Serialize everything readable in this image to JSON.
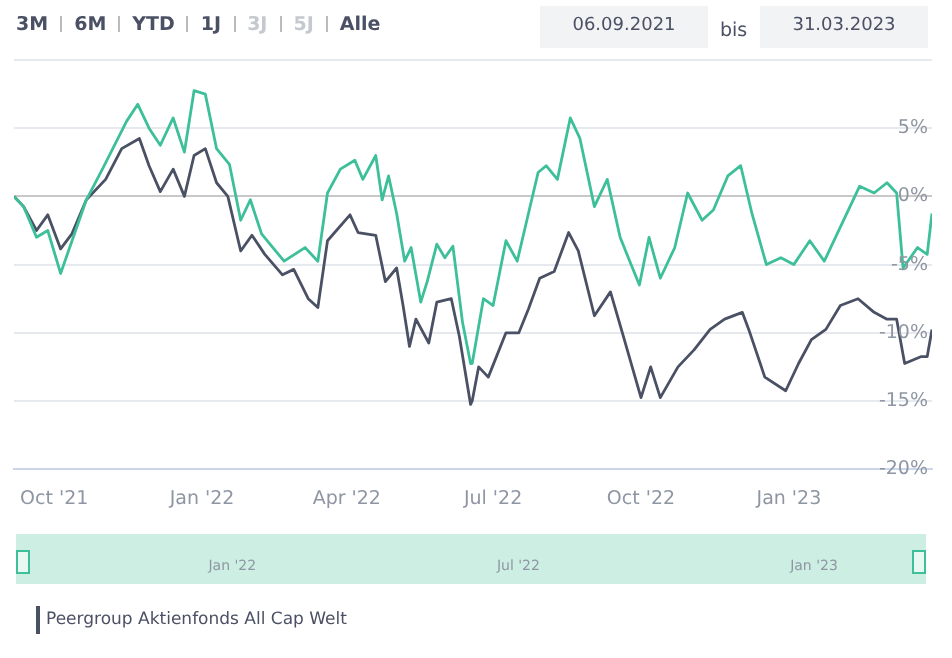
{
  "chart_data": {
    "type": "line",
    "x": [
      "2021-09-06",
      "2021-09-12",
      "2021-09-20",
      "2021-09-27",
      "2021-10-05",
      "2021-10-12",
      "2021-10-21",
      "2021-10-31",
      "2021-11-02",
      "2021-11-12",
      "2021-11-15",
      "2021-11-22",
      "2021-11-23",
      "2021-11-29",
      "2021-12-06",
      "2021-12-14",
      "2021-12-21",
      "2021-12-27",
      "2022-01-03",
      "2022-01-10",
      "2022-01-17",
      "2022-01-18",
      "2022-01-25",
      "2022-01-31",
      "2022-02-01",
      "2022-02-07",
      "2022-02-09",
      "2022-02-20",
      "2022-02-21",
      "2022-02-27",
      "2022-03-06",
      "2022-03-08",
      "2022-03-14",
      "2022-03-20",
      "2022-03-28",
      "2022-04-03",
      "2022-04-06",
      "2022-04-08",
      "2022-04-11",
      "2022-04-19",
      "2022-04-23",
      "2022-04-25",
      "2022-04-27",
      "2022-05-02",
      "2022-05-06",
      "2022-05-07",
      "2022-05-10",
      "2022-05-11",
      "2022-05-14",
      "2022-05-17",
      "2022-05-21",
      "2022-05-22",
      "2022-05-27",
      "2022-06-01",
      "2022-06-05",
      "2022-06-06",
      "2022-06-10",
      "2022-06-12",
      "2022-06-17",
      "2022-06-18",
      "2022-06-22",
      "2022-06-25",
      "2022-06-28",
      "2022-07-01",
      "2022-07-09",
      "2022-07-16",
      "2022-07-17",
      "2022-07-22",
      "2022-07-23",
      "2022-07-29",
      "2022-07-30",
      "2022-08-03",
      "2022-08-08",
      "2022-08-10",
      "2022-08-17",
      "2022-08-18",
      "2022-08-23",
      "2022-08-24",
      "2022-09-02",
      "2022-09-10",
      "2022-09-12",
      "2022-09-18",
      "2022-09-20",
      "2022-09-30",
      "2022-10-01",
      "2022-10-06",
      "2022-10-07",
      "2022-10-13",
      "2022-10-22",
      "2022-10-24",
      "2022-10-30",
      "2022-11-03",
      "2022-11-08",
      "2022-11-13",
      "2022-11-15",
      "2022-11-22",
      "2022-11-24",
      "2022-12-02",
      "2022-12-03",
      "2022-12-07",
      "2022-12-09",
      "2022-12-17",
      "2022-12-18",
      "2022-12-27",
      "2022-12-30",
      "2023-01-04",
      "2023-01-07",
      "2023-01-14",
      "2023-01-15",
      "2023-01-23",
      "2023-01-24",
      "2023-01-31",
      "2023-02-02",
      "2023-02-13",
      "2023-02-14",
      "2023-02-23",
      "2023-03-03",
      "2023-03-09",
      "2023-03-13",
      "2023-03-14",
      "2023-03-22",
      "2023-03-24",
      "2023-03-28",
      "2023-03-31"
    ],
    "series": [
      {
        "color": "#3dbf9a",
        "values": [
          0,
          -0.75,
          -3,
          -2.5,
          -5.65,
          null,
          -0.25,
          2,
          null,
          null,
          5.5,
          6.75,
          null,
          5,
          3.75,
          5.75,
          3.25,
          7.75,
          7.5,
          3.5,
          null,
          2.35,
          -1.75,
          -0.25,
          null,
          -2.75,
          null,
          null,
          -4.75,
          null,
          -3.75,
          null,
          -4.75,
          0.25,
          2,
          null,
          2.65,
          null,
          1.25,
          3,
          -0.25,
          null,
          1.5,
          -1.25,
          null,
          -4.75,
          null,
          -3.75,
          null,
          -7.75,
          -6.25,
          null,
          -3.5,
          -4.5,
          null,
          -3.65,
          null,
          -9.25,
          -12.25,
          -12.25,
          null,
          -7.5,
          null,
          -8,
          -3.25,
          -4.75,
          null,
          -1.75,
          null,
          1.75,
          null,
          2.25,
          null,
          1.25,
          null,
          5.75,
          null,
          4.25,
          -0.75,
          1.25,
          null,
          -3,
          null,
          -6.5,
          null,
          -3,
          null,
          -6,
          -3.75,
          null,
          0.25,
          null,
          -1.75,
          null,
          -1,
          null,
          1.5,
          2.25,
          null,
          null,
          -1.25,
          null,
          -5,
          -4.5,
          null,
          -5,
          null,
          -3.25,
          null,
          -4.75,
          null,
          -2.75,
          null,
          null,
          0.75,
          0.25,
          1,
          0.25,
          -5.25,
          null,
          -3.75,
          null,
          -4.25,
          -1.25
        ]
      },
      {
        "name": "Peergroup Aktienfonds All Cap Welt",
        "color": "#4b5164",
        "values": [
          0,
          -0.75,
          -2.5,
          -1.35,
          -3.85,
          -2.75,
          -0.25,
          null,
          1.25,
          3.5,
          null,
          null,
          4.25,
          2.25,
          0.35,
          2,
          0,
          3,
          3.5,
          1,
          0,
          null,
          -4,
          null,
          -2.85,
          null,
          -4.25,
          -5.75,
          null,
          -5.35,
          null,
          -7.5,
          -8.15,
          -3.25,
          null,
          -1.35,
          null,
          -2.65,
          null,
          -2.85,
          null,
          -6.25,
          null,
          -5.25,
          -8,
          null,
          -11,
          null,
          -9,
          null,
          null,
          -10.75,
          -7.75,
          null,
          -7.5,
          null,
          -10.25,
          null,
          -15.25,
          -15,
          -12.5,
          null,
          -13.25,
          null,
          -10,
          null,
          -10,
          null,
          -8.25,
          null,
          -6,
          null,
          -5.5,
          null,
          -2.65,
          null,
          -4,
          null,
          -8.75,
          null,
          -7,
          null,
          -10.25,
          null,
          -14.75,
          null,
          -12.5,
          -14.75,
          null,
          -12.5,
          null,
          -11.25,
          null,
          -9.75,
          null,
          -9,
          null,
          null,
          -8.5,
          -9.75,
          null,
          -13.25,
          null,
          null,
          -14.25,
          null,
          -12.25,
          null,
          -10.5,
          null,
          -9.75,
          null,
          -8,
          -7.5,
          null,
          -8.5,
          -9,
          -9,
          null,
          -12.25,
          null,
          -11.75,
          -11.75,
          -9.75
        ]
      }
    ],
    "xlim": [
      "2021-09-06",
      "2023-03-31"
    ],
    "xticks": [
      {
        "value": "2021-10-01",
        "label": "Oct '21"
      },
      {
        "value": "2022-01-01",
        "label": "Jan '22"
      },
      {
        "value": "2022-04-01",
        "label": "Apr '22"
      },
      {
        "value": "2022-07-01",
        "label": "Jul '22"
      },
      {
        "value": "2022-10-01",
        "label": "Oct '22"
      },
      {
        "value": "2023-01-01",
        "label": "Jan '23"
      }
    ],
    "ylim": [
      -20,
      10
    ],
    "yticks": [
      {
        "value": -20,
        "label": "-20%"
      },
      {
        "value": -15,
        "label": "-15%"
      },
      {
        "value": -10,
        "label": "-10%"
      },
      {
        "value": -5,
        "label": "-5%"
      },
      {
        "value": 0,
        "label": "0%"
      },
      {
        "value": 5,
        "label": "5%"
      },
      {
        "value": 10,
        "label": null
      }
    ],
    "grid": "y",
    "legend": "bottom left",
    "marker": "none",
    "line_style": "solid",
    "annotations": [
      "3M",
      "6M",
      "YTD",
      "1J",
      "3J",
      "5J",
      "Alle",
      "06.09.2021",
      "bis",
      "31.03.2023",
      "Jan '22",
      "Jul '22",
      "Jan '23"
    ]
  }
}
